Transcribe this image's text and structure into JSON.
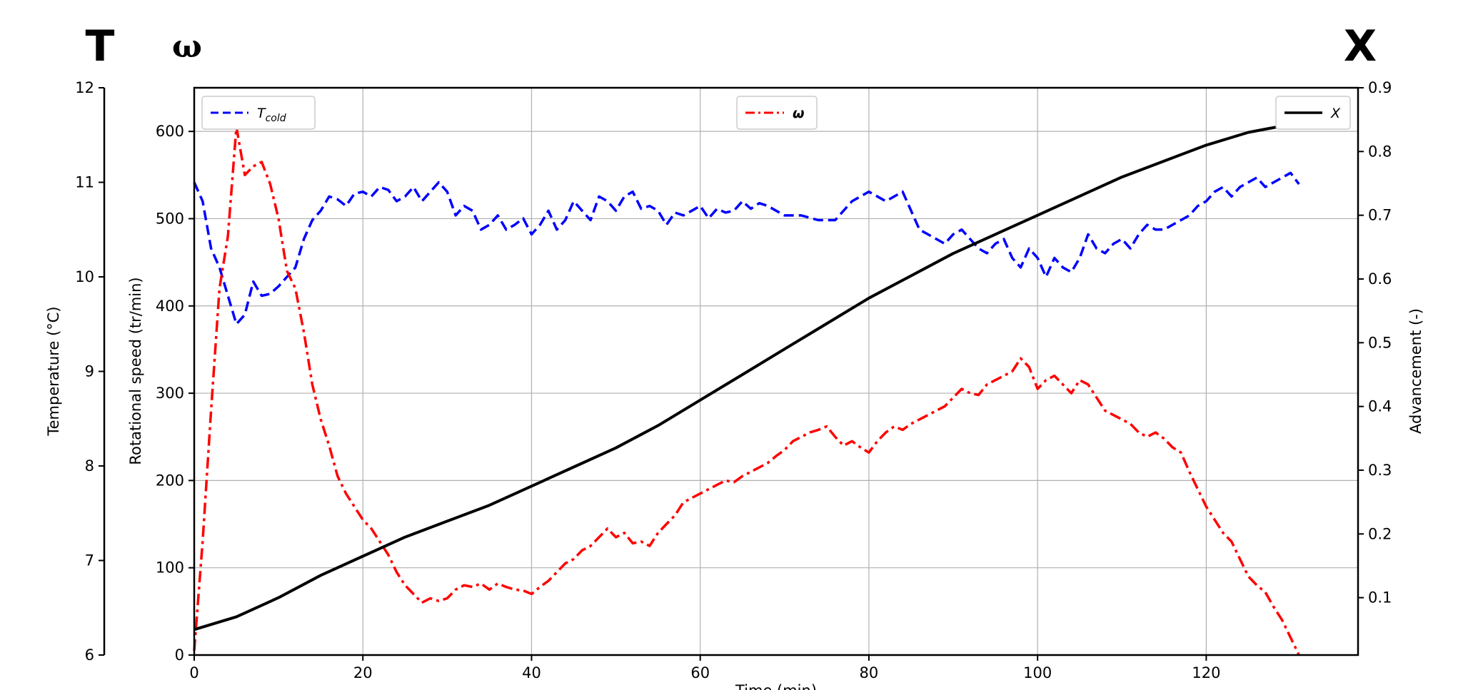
{
  "corner_labels": {
    "left_temp": "T",
    "left_omega": "ω",
    "right_adv": "X"
  },
  "colors": {
    "temperature": "#0070c0",
    "omega": "#ff0000",
    "advancement": "#000000",
    "t_line": "#0000ff",
    "w_line": "#ff0000",
    "x_line": "#000000"
  },
  "chart_data": {
    "type": "line",
    "xlabel": "Time (min)",
    "xlim": [
      0,
      138
    ],
    "xticks": [
      0,
      20,
      40,
      60,
      80,
      100,
      120
    ],
    "axes": {
      "temperature": {
        "label": "Temperature (°C)",
        "ylim": [
          6,
          12
        ],
        "ticks": [
          6,
          7,
          8,
          9,
          10,
          11,
          12
        ]
      },
      "speed": {
        "label": "Rotational speed (tr/min)",
        "ylim": [
          0,
          650
        ],
        "ticks": [
          0,
          100,
          200,
          300,
          400,
          500,
          600
        ]
      },
      "advancement": {
        "label": "Advancement (-)",
        "ylim": [
          0.01,
          0.9
        ],
        "ticks": [
          0.1,
          0.2,
          0.3,
          0.4,
          0.5,
          0.6,
          0.7,
          0.8,
          0.9
        ]
      }
    },
    "grid": true,
    "legends": {
      "t_cold": {
        "label": "T",
        "sub": "cold",
        "placement": "upper-left"
      },
      "omega": {
        "label": "ω",
        "placement": "upper-center"
      },
      "x": {
        "label": "X",
        "placement": "upper-right"
      }
    },
    "series": [
      {
        "name": "T_cold",
        "axis": "temperature",
        "style": "dashed",
        "x": [
          0,
          1,
          2,
          3,
          4,
          5,
          6,
          7,
          8,
          9,
          10,
          11,
          12,
          13,
          14,
          15,
          16,
          17,
          18,
          19,
          20,
          21,
          22,
          23,
          24,
          25,
          26,
          27,
          28,
          29,
          30,
          31,
          32,
          33,
          34,
          35,
          36,
          37,
          38,
          39,
          40,
          41,
          42,
          43,
          44,
          45,
          46,
          47,
          48,
          49,
          50,
          51,
          52,
          53,
          54,
          55,
          56,
          57,
          58,
          59,
          60,
          61,
          62,
          63,
          64,
          65,
          66,
          67,
          68,
          69,
          70,
          72,
          74,
          76,
          78,
          80,
          82,
          84,
          86,
          88,
          89,
          90,
          91,
          92,
          93,
          94,
          95,
          96,
          97,
          98,
          99,
          100,
          101,
          102,
          103,
          104,
          105,
          106,
          107,
          108,
          109,
          110,
          111,
          112,
          113,
          114,
          115,
          116,
          117,
          118,
          119,
          120,
          121,
          122,
          123,
          124,
          125,
          126,
          127,
          128,
          129,
          130,
          131
        ],
        "values": [
          11,
          10.8,
          10.3,
          10.1,
          9.8,
          9.5,
          9.6,
          9.95,
          9.8,
          9.82,
          9.9,
          10.0,
          10.1,
          10.4,
          10.6,
          10.7,
          10.85,
          10.82,
          10.75,
          10.88,
          10.9,
          10.85,
          10.95,
          10.92,
          10.8,
          10.85,
          10.95,
          10.8,
          10.9,
          11.0,
          10.9,
          10.65,
          10.75,
          10.7,
          10.5,
          10.55,
          10.65,
          10.5,
          10.55,
          10.62,
          10.45,
          10.55,
          10.7,
          10.5,
          10.6,
          10.8,
          10.7,
          10.6,
          10.85,
          10.8,
          10.7,
          10.85,
          10.9,
          10.72,
          10.75,
          10.7,
          10.55,
          10.68,
          10.65,
          10.7,
          10.75,
          10.62,
          10.72,
          10.68,
          10.7,
          10.8,
          10.72,
          10.78,
          10.75,
          10.7,
          10.65,
          10.65,
          10.6,
          10.6,
          10.8,
          10.9,
          10.8,
          10.9,
          10.5,
          10.4,
          10.35,
          10.45,
          10.5,
          10.4,
          10.3,
          10.25,
          10.35,
          10.4,
          10.2,
          10.1,
          10.3,
          10.2,
          10.0,
          10.2,
          10.1,
          10.05,
          10.2,
          10.45,
          10.3,
          10.25,
          10.35,
          10.4,
          10.3,
          10.45,
          10.55,
          10.5,
          10.5,
          10.55,
          10.6,
          10.65,
          10.75,
          10.8,
          10.9,
          10.95,
          10.85,
          10.95,
          11.0,
          11.05,
          10.95,
          11.0,
          11.05,
          11.1,
          10.98
        ],
        "color": "#0000ff"
      },
      {
        "name": "ω",
        "axis": "speed",
        "style": "dashdot",
        "x": [
          0,
          1,
          2,
          3,
          4,
          5,
          6,
          7,
          8,
          9,
          10,
          11,
          12,
          13,
          14,
          15,
          16,
          17,
          18,
          19,
          20,
          21,
          22,
          23,
          24,
          25,
          26,
          27,
          28,
          29,
          30,
          31,
          32,
          33,
          34,
          35,
          36,
          37,
          38,
          39,
          40,
          41,
          42,
          43,
          44,
          45,
          46,
          47,
          48,
          49,
          50,
          51,
          52,
          53,
          54,
          55,
          56,
          57,
          58,
          59,
          60,
          61,
          62,
          63,
          64,
          65,
          66,
          67,
          68,
          69,
          70,
          71,
          72,
          73,
          74,
          75,
          76,
          77,
          78,
          79,
          80,
          81,
          82,
          83,
          84,
          85,
          86,
          87,
          88,
          89,
          90,
          91,
          92,
          93,
          94,
          95,
          96,
          97,
          98,
          99,
          100,
          101,
          102,
          103,
          104,
          105,
          106,
          107,
          108,
          109,
          110,
          111,
          112,
          113,
          114,
          115,
          116,
          117,
          118,
          119,
          120,
          121,
          122,
          123,
          124,
          125,
          126,
          127,
          128,
          129,
          130,
          131
        ],
        "values": [
          5,
          130,
          280,
          420,
          480,
          605,
          550,
          560,
          565,
          540,
          500,
          440,
          420,
          370,
          310,
          270,
          240,
          205,
          185,
          170,
          155,
          145,
          130,
          115,
          95,
          80,
          70,
          60,
          65,
          62,
          65,
          75,
          80,
          78,
          82,
          75,
          82,
          78,
          75,
          74,
          70,
          78,
          85,
          95,
          105,
          110,
          120,
          125,
          135,
          145,
          135,
          140,
          128,
          130,
          125,
          140,
          150,
          160,
          175,
          180,
          185,
          190,
          195,
          200,
          198,
          205,
          210,
          215,
          220,
          228,
          235,
          245,
          250,
          255,
          258,
          262,
          250,
          240,
          245,
          238,
          232,
          245,
          255,
          262,
          258,
          265,
          270,
          275,
          280,
          285,
          295,
          305,
          300,
          298,
          310,
          315,
          320,
          325,
          340,
          330,
          305,
          315,
          320,
          310,
          300,
          315,
          310,
          295,
          280,
          275,
          270,
          265,
          255,
          250,
          255,
          248,
          238,
          232,
          210,
          190,
          170,
          155,
          140,
          130,
          110,
          90,
          80,
          72,
          55,
          40,
          20,
          0
        ],
        "color": "#ff0000"
      },
      {
        "name": "X",
        "axis": "advancement",
        "style": "solid",
        "x": [
          0,
          5,
          10,
          15,
          20,
          25,
          30,
          35,
          40,
          45,
          50,
          55,
          60,
          65,
          70,
          75,
          80,
          85,
          90,
          95,
          100,
          105,
          110,
          115,
          120,
          125,
          131
        ],
        "values": [
          0.05,
          0.07,
          0.1,
          0.135,
          0.165,
          0.195,
          0.22,
          0.245,
          0.275,
          0.305,
          0.335,
          0.37,
          0.41,
          0.45,
          0.49,
          0.53,
          0.57,
          0.605,
          0.64,
          0.67,
          0.7,
          0.73,
          0.76,
          0.785,
          0.81,
          0.83,
          0.845
        ],
        "color": "#000000"
      }
    ]
  }
}
